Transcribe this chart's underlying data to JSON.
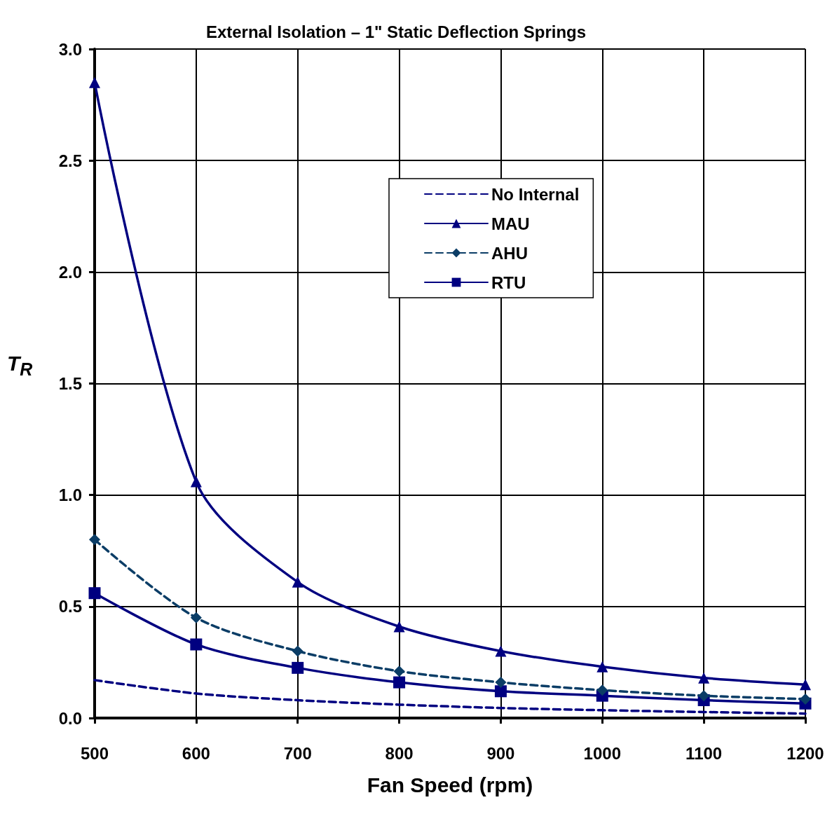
{
  "chart_data": {
    "type": "line",
    "title": "External Isolation – 1\" Static Deflection Springs",
    "xlabel": "Fan Speed (rpm)",
    "ylabel": "T$_{R}$",
    "x": [
      500,
      600,
      700,
      800,
      900,
      1000,
      1100,
      1200
    ],
    "series": [
      {
        "name": "No Internal",
        "color": "#000080",
        "line_style": "dashed",
        "marker": "none",
        "values": [
          0.17,
          0.11,
          0.08,
          0.06,
          0.045,
          0.035,
          0.027,
          0.02
        ]
      },
      {
        "name": "MAU",
        "color": "#000080",
        "line_style": "solid",
        "marker": "triangle",
        "values": [
          2.85,
          1.06,
          0.61,
          0.41,
          0.3,
          0.23,
          0.18,
          0.15
        ]
      },
      {
        "name": "AHU",
        "color": "#0b3d66",
        "line_style": "dashed",
        "marker": "diamond",
        "values": [
          0.8,
          0.45,
          0.3,
          0.21,
          0.16,
          0.125,
          0.1,
          0.085
        ]
      },
      {
        "name": "RTU",
        "color": "#000080",
        "line_style": "solid",
        "marker": "square",
        "values": [
          0.56,
          0.33,
          0.225,
          0.16,
          0.12,
          0.1,
          0.08,
          0.065
        ]
      }
    ],
    "xlim": [
      500,
      1200
    ],
    "xticks": [
      500,
      600,
      700,
      800,
      900,
      1000,
      1100,
      1200
    ],
    "ylim": [
      0,
      3
    ],
    "yticks": [
      {
        "value": 0,
        "label": "0.0"
      },
      0.5,
      {
        "value": 1,
        "label": "1.0"
      },
      1.5,
      {
        "value": 2,
        "label": "2.0"
      },
      2.5,
      {
        "value": 3,
        "label": "3.0"
      }
    ],
    "grid": true,
    "legend": "top right"
  }
}
